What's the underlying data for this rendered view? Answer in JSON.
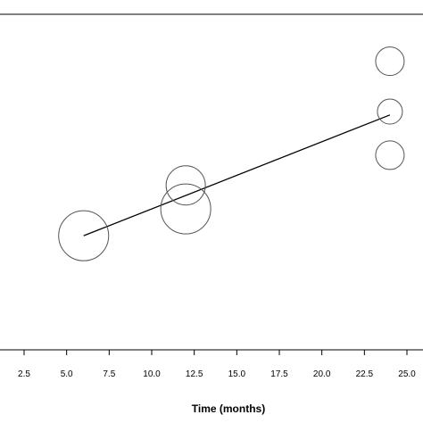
{
  "chart_data": {
    "type": "scatter",
    "title": "",
    "xlabel": "Time (months)",
    "ylabel": "",
    "xlim": [
      0,
      25.5
    ],
    "ylim": [
      0,
      1
    ],
    "x_ticks": [
      2.5,
      5.0,
      7.5,
      10.0,
      12.5,
      15.0,
      17.5,
      20.0,
      22.5,
      25.0
    ],
    "x_tick_labels": [
      "2.5",
      "5.0",
      "7.5",
      "10.0",
      "12.5",
      "15.0",
      "17.5",
      "20.0",
      "22.5",
      "25.0"
    ],
    "grid": false,
    "points": [
      {
        "x": 6.0,
        "y": 0.34,
        "size": 28
      },
      {
        "x": 12.0,
        "y": 0.42,
        "size": 28
      },
      {
        "x": 12.0,
        "y": 0.49,
        "size": 22
      },
      {
        "x": 24.0,
        "y": 0.58,
        "size": 16
      },
      {
        "x": 24.0,
        "y": 0.71,
        "size": 14
      },
      {
        "x": 24.0,
        "y": 0.86,
        "size": 16
      }
    ],
    "fit_line": {
      "x": [
        6.0,
        24.0
      ],
      "y": [
        0.34,
        0.7
      ]
    },
    "colors": {
      "marker_stroke": "#555555",
      "line": "#000000",
      "axis": "#000000"
    }
  }
}
